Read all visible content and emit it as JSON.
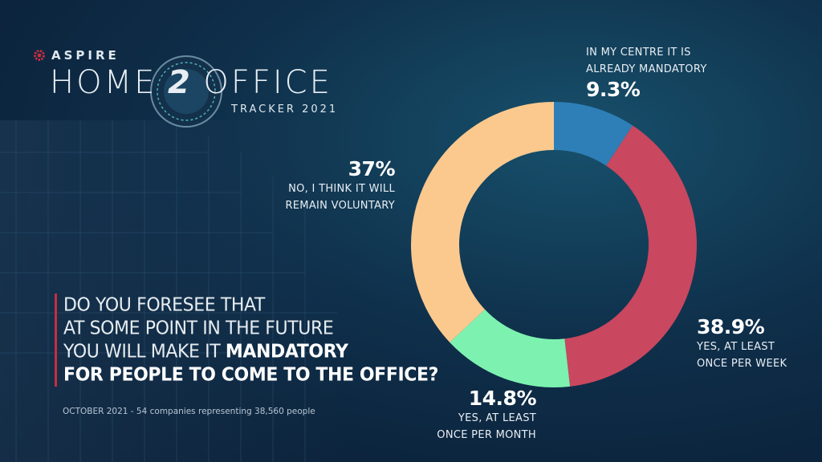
{
  "logo": {
    "brand": "ASPIRE",
    "wordmark_left": "HOME",
    "wordmark_num": "2",
    "wordmark_right": "OFFICE",
    "tracker": "TRACKER 2021",
    "colors": {
      "brand_red": "#c62e3f",
      "ring": "#8fb3c8"
    }
  },
  "question": {
    "line1": "DO YOU FORESEE THAT",
    "line2": "AT SOME POINT IN THE FUTURE",
    "line3_prefix": "YOU WILL MAKE IT ",
    "line3_bold": "MANDATORY",
    "line4": "FOR PEOPLE TO COME TO THE OFFICE?"
  },
  "source": "OCTOBER 2021 - 54 companies representing 38,560 people",
  "chart_data": {
    "type": "pie",
    "donut": true,
    "start_angle_deg": 0,
    "direction": "clockwise",
    "slices": [
      {
        "value": 9.3,
        "pct_label": "9.3%",
        "label_lines": [
          "IN MY CENTRE IT IS",
          "ALREADY MANDATORY"
        ],
        "color": "#2e7fb7"
      },
      {
        "value": 38.9,
        "pct_label": "38.9%",
        "label_lines": [
          "YES, AT LEAST",
          "ONCE PER WEEK"
        ],
        "color": "#c9475f"
      },
      {
        "value": 14.8,
        "pct_label": "14.8%",
        "label_lines": [
          "YES, AT LEAST",
          "ONCE PER MONTH"
        ],
        "color": "#7df2b0"
      },
      {
        "value": 37,
        "pct_label": "37%",
        "label_lines": [
          "NO, I THINK IT WILL",
          "REMAIN VOLUNTARY"
        ],
        "color": "#fbc98e"
      }
    ]
  }
}
